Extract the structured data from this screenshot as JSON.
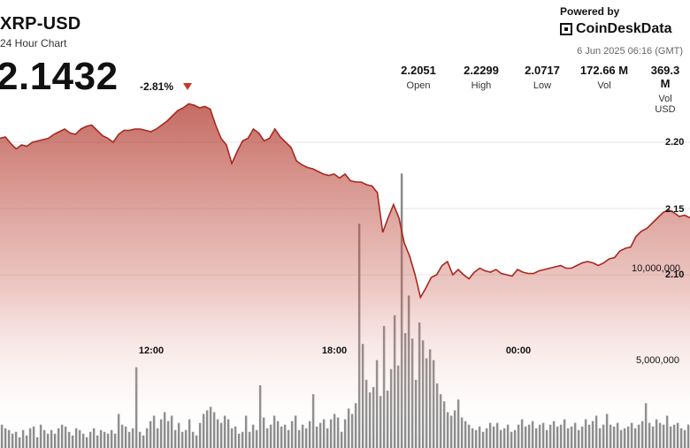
{
  "header": {
    "title": "XRP-USD",
    "subtitle": "24 Hour Chart",
    "price": "2.1432",
    "change": "-2.81%",
    "powered_by": "Powered by",
    "brand": "CoinDeskData",
    "timestamp": "6 Jun 2025 06:16 (GMT)"
  },
  "stats": [
    {
      "value": "2.2051",
      "label": "Open"
    },
    {
      "value": "2.2299",
      "label": "High"
    },
    {
      "value": "2.0717",
      "label": "Low"
    },
    {
      "value": "172.66 M",
      "label": "Vol"
    },
    {
      "value": "369.3 M",
      "label": "Vol USD"
    }
  ],
  "colors": {
    "accent": "#b03a2e",
    "bar": "#8a8a8a",
    "down": "#c0392b"
  },
  "chart_data": {
    "type": "area",
    "x_tick_labels": [
      "12:00",
      "18:00",
      "00:00"
    ],
    "price_ticks": [
      "2.20",
      "2.15",
      "2.10"
    ],
    "volume_ticks": [
      "10,000,000",
      "5,000,000"
    ],
    "price_axis_range": [
      2.02,
      2.3
    ],
    "volume_axis_range": [
      0,
      16000000
    ],
    "price_series": [
      2.203,
      2.204,
      2.199,
      2.195,
      2.198,
      2.197,
      2.2,
      2.201,
      2.202,
      2.203,
      2.206,
      2.208,
      2.21,
      2.207,
      2.206,
      2.21,
      2.212,
      2.213,
      2.209,
      2.205,
      2.203,
      2.2,
      2.206,
      2.209,
      2.209,
      2.21,
      2.21,
      2.209,
      2.208,
      2.21,
      2.213,
      2.216,
      2.22,
      2.224,
      2.226,
      2.229,
      2.228,
      2.226,
      2.227,
      2.225,
      2.213,
      2.203,
      2.198,
      2.184,
      2.193,
      2.201,
      2.203,
      2.21,
      2.207,
      2.201,
      2.203,
      2.21,
      2.204,
      2.2,
      2.196,
      2.186,
      2.183,
      2.181,
      2.18,
      2.178,
      2.176,
      2.175,
      2.176,
      2.173,
      2.176,
      2.171,
      2.17,
      2.17,
      2.168,
      2.167,
      2.162,
      2.132,
      2.143,
      2.153,
      2.143,
      2.124,
      2.114,
      2.1,
      2.083,
      2.09,
      2.098,
      2.1,
      2.107,
      2.11,
      2.1,
      2.104,
      2.1,
      2.097,
      2.102,
      2.105,
      2.103,
      2.102,
      2.104,
      2.101,
      2.1,
      2.099,
      2.104,
      2.102,
      2.101,
      2.101,
      2.103,
      2.104,
      2.105,
      2.106,
      2.107,
      2.105,
      2.105,
      2.107,
      2.109,
      2.11,
      2.109,
      2.107,
      2.109,
      2.112,
      2.113,
      2.118,
      2.12,
      2.121,
      2.129,
      2.133,
      2.135,
      2.139,
      2.143,
      2.147,
      2.149,
      2.147,
      2.144,
      2.145,
      2.143
    ],
    "volume_series": [
      1300000,
      1100000,
      1000000,
      800000,
      900000,
      600000,
      1000000,
      700000,
      1100000,
      1200000,
      600000,
      1300000,
      1000000,
      800000,
      1000000,
      800000,
      1100000,
      1300000,
      1200000,
      900000,
      700000,
      1100000,
      1000000,
      800000,
      600000,
      900000,
      1100000,
      700000,
      1000000,
      900000,
      800000,
      1000000,
      800000,
      1900000,
      1300000,
      1200000,
      900000,
      1100000,
      4500000,
      900000,
      700000,
      1100000,
      1500000,
      1800000,
      1100000,
      1600000,
      2000000,
      1500000,
      1800000,
      1000000,
      1400000,
      900000,
      1000000,
      1600000,
      900000,
      700000,
      1400000,
      1900000,
      2100000,
      2300000,
      2000000,
      1600000,
      1400000,
      1800000,
      1600000,
      1100000,
      1200000,
      800000,
      900000,
      1800000,
      900000,
      1300000,
      1000000,
      3500000,
      1700000,
      1100000,
      1300000,
      1800000,
      1500000,
      1200000,
      1300000,
      1000000,
      1500000,
      1800000,
      1000000,
      1300000,
      1100000,
      1500000,
      3000000,
      1200000,
      1400000,
      1600000,
      1100000,
      1600000,
      1900000,
      1700000,
      900000,
      1600000,
      2200000,
      1900000,
      2500000,
      12500000,
      5800000,
      3800000,
      3100000,
      3400000,
      4900000,
      2900000,
      6800000,
      3200000,
      4400000,
      7400000,
      4600000,
      15300000,
      6400000,
      8500000,
      6100000,
      3800000,
      7000000,
      6000000,
      5000000,
      5500000,
      4900000,
      3600000,
      3000000,
      2600000,
      2000000,
      1800000,
      2100000,
      2700000,
      1700000,
      1500000,
      1300000,
      1100000,
      1000000,
      1200000,
      900000,
      1100000,
      1400000,
      1200000,
      1400000,
      1000000,
      1100000,
      1300000,
      900000,
      1000000,
      1300000,
      1600000,
      1200000,
      1300000,
      1500000,
      1100000,
      1300000,
      1400000,
      1000000,
      1300000,
      1500000,
      1200000,
      1300000,
      1600000,
      1100000,
      1200000,
      1400000,
      1000000,
      1200000,
      1600000,
      1300000,
      1500000,
      1800000,
      1100000,
      1300000,
      1900000,
      1300000,
      1200000,
      1400000,
      1000000,
      1100000,
      1200000,
      1400000,
      1100000,
      1300000,
      1500000,
      2500000,
      1400000,
      1200000,
      1600000,
      1400000,
      1300000,
      1800000,
      1200000,
      1300000,
      1400000,
      1100000,
      1000000,
      1300000
    ]
  }
}
